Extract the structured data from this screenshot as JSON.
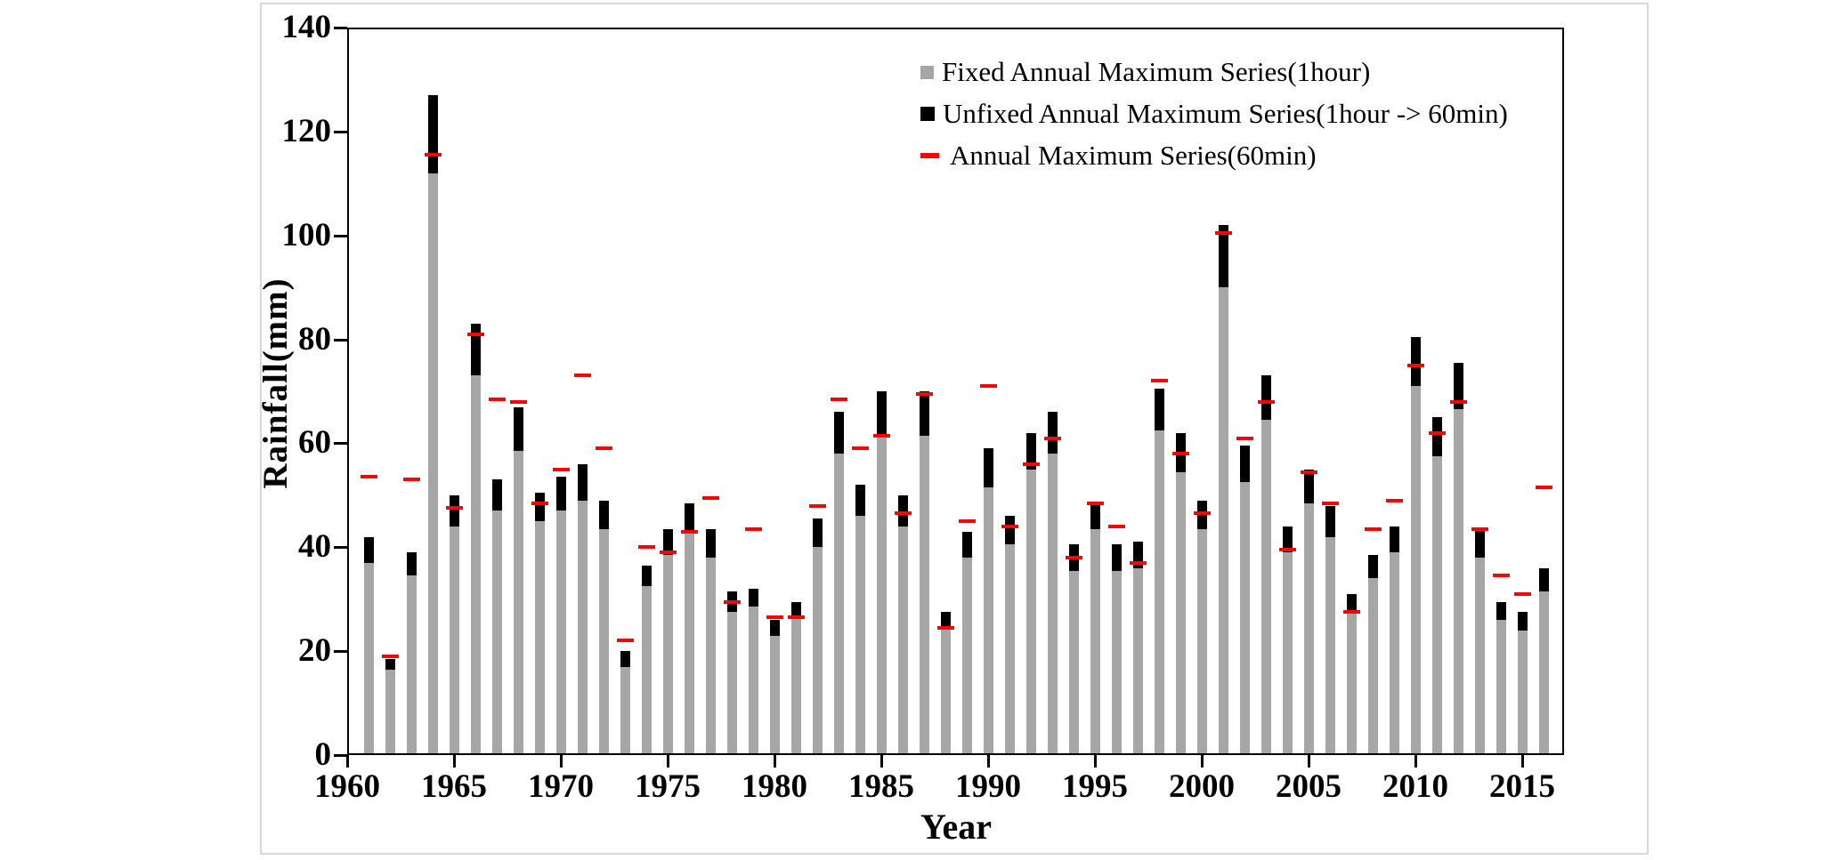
{
  "figure": {
    "ylabel": "Rainfall(mm)",
    "xlabel": "Year",
    "background": "#ffffff",
    "frame_color": "#000000",
    "colors": {
      "fixed_bar": "#a6a6a6",
      "unfixed_bar": "#000000",
      "sixty_min_dash": "#ff0000"
    }
  },
  "legend": [
    {
      "marker": "gray-square-icon",
      "label": "Fixed Annual Maximum Series(1hour)"
    },
    {
      "marker": "black-square-icon",
      "label": "Unfixed Annual Maximum Series(1hour -> 60min)"
    },
    {
      "marker": "red-dash-icon",
      "label": "Annual Maximum Series(60min)"
    }
  ],
  "chart_data": {
    "type": "bar",
    "title": "",
    "xlabel": "Year",
    "ylabel": "Rainfall(mm)",
    "ylim": [
      0,
      140
    ],
    "xlim": [
      1960,
      2017
    ],
    "yticks": [
      0,
      20,
      40,
      60,
      80,
      100,
      120,
      140
    ],
    "xticks": [
      1960,
      1965,
      1970,
      1975,
      1980,
      1985,
      1990,
      1995,
      2000,
      2005,
      2010,
      2015
    ],
    "grid": false,
    "legend_position": "top-right",
    "x": [
      1961,
      1962,
      1963,
      1964,
      1965,
      1966,
      1967,
      1968,
      1969,
      1970,
      1971,
      1972,
      1973,
      1974,
      1975,
      1976,
      1977,
      1978,
      1979,
      1980,
      1981,
      1982,
      1983,
      1984,
      1985,
      1986,
      1987,
      1988,
      1989,
      1990,
      1991,
      1992,
      1993,
      1994,
      1995,
      1996,
      1997,
      1998,
      1999,
      2000,
      2001,
      2002,
      2003,
      2004,
      2005,
      2006,
      2007,
      2008,
      2009,
      2010,
      2011,
      2012,
      2013,
      2014,
      2015,
      2016
    ],
    "series": [
      {
        "name": "Fixed Annual Maximum Series(1hour)",
        "color": "#a6a6a6",
        "render": "bar",
        "values": [
          37,
          16.5,
          34.5,
          112,
          44,
          73,
          47,
          58.5,
          45,
          47,
          49,
          43.5,
          17,
          32.5,
          38.5,
          43,
          38,
          27.5,
          28.5,
          23,
          26.5,
          40,
          58,
          46,
          61.5,
          44,
          61.5,
          24.5,
          38,
          51.5,
          40.5,
          55,
          58,
          35.5,
          43.5,
          35.5,
          36,
          62.5,
          54.5,
          43.5,
          90,
          52.5,
          64.5,
          39,
          48.5,
          42,
          27.5,
          34,
          39,
          71,
          57.5,
          66.5,
          38,
          26,
          24,
          31.5
        ]
      },
      {
        "name": "Unfixed Annual Maximum Series(1hour -> 60min)",
        "color": "#000000",
        "render": "bar-top",
        "values": [
          42,
          18.5,
          39,
          127,
          50,
          83,
          53,
          67,
          50.5,
          53.5,
          56,
          49,
          20,
          36.5,
          43.5,
          48.5,
          43.5,
          31.5,
          32,
          26,
          29.5,
          45.5,
          66,
          52,
          70,
          50,
          70,
          27.5,
          43,
          59,
          46,
          62,
          66,
          40.5,
          48.5,
          40.5,
          41,
          70.5,
          62,
          49,
          102,
          59.5,
          73,
          44,
          55,
          48,
          31,
          38.5,
          44,
          80.5,
          65,
          75.5,
          43.5,
          29.5,
          27.5,
          36
        ]
      },
      {
        "name": "Annual Maximum Series(60min)",
        "color": "#ff0000",
        "render": "dash",
        "values": [
          53.5,
          19,
          53,
          115.5,
          47.5,
          81,
          68.5,
          68,
          48.5,
          55,
          73,
          59,
          22,
          40,
          39,
          43,
          49.5,
          29.5,
          43.5,
          26.5,
          26.5,
          48,
          68.5,
          59,
          61.5,
          46.5,
          69.5,
          24.5,
          45,
          71,
          44,
          56,
          61,
          38,
          48.5,
          44,
          37,
          72,
          58,
          46.5,
          100.5,
          61,
          68,
          39.5,
          54.5,
          48.5,
          27.5,
          43.5,
          49,
          75,
          62,
          68,
          43.5,
          34.5,
          31,
          51.5
        ]
      }
    ]
  }
}
